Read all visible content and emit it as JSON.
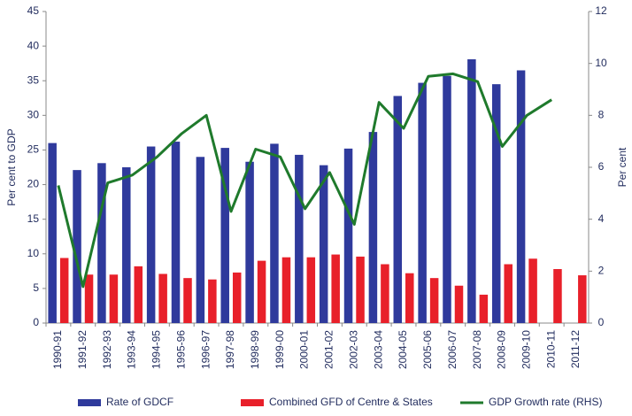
{
  "chart_data": {
    "type": "bar-line",
    "y_label": "Per cent to GDP",
    "y2_label": "Per cent",
    "categories": [
      "1990-91",
      "1991-92",
      "1992-93",
      "1993-94",
      "1994-95",
      "1995-96",
      "1996-97",
      "1997-98",
      "1998-99",
      "1999-00",
      "2000-01",
      "2001-02",
      "2002-03",
      "2003-04",
      "2004-05",
      "2005-06",
      "2006-07",
      "2007-08",
      "2008-09",
      "2009-10",
      "2010-11",
      "2011-12"
    ],
    "series": [
      {
        "name": "Rate of GDCF",
        "type": "bar",
        "color": "#2f3a9c",
        "values": [
          26.0,
          22.1,
          23.1,
          22.5,
          25.5,
          26.2,
          24.0,
          25.3,
          23.3,
          25.9,
          24.3,
          22.8,
          25.2,
          27.6,
          32.8,
          34.7,
          35.7,
          38.1,
          34.5,
          36.5,
          null,
          null
        ]
      },
      {
        "name": "Combined GFD of Centre & States",
        "type": "bar",
        "color": "#e8202a",
        "values": [
          9.4,
          7.0,
          7.0,
          8.2,
          7.1,
          6.5,
          6.3,
          7.3,
          9.0,
          9.5,
          9.5,
          9.9,
          9.6,
          8.5,
          7.2,
          6.5,
          5.4,
          4.1,
          8.5,
          9.3,
          7.8,
          6.9
        ]
      },
      {
        "name": "GDP Growth rate (RHS)",
        "type": "line",
        "axis": "y2",
        "color": "#1f7a2c",
        "values": [
          5.3,
          1.4,
          5.4,
          5.7,
          6.4,
          7.3,
          8.0,
          4.3,
          6.7,
          6.4,
          4.4,
          5.8,
          3.8,
          8.5,
          7.5,
          9.5,
          9.6,
          9.3,
          6.8,
          8.0,
          8.6,
          null
        ]
      }
    ],
    "ylim": [
      0,
      45
    ],
    "yticks": [
      0,
      5,
      10,
      15,
      20,
      25,
      30,
      35,
      40,
      45
    ],
    "y2lim": [
      0,
      12
    ],
    "y2ticks": [
      0,
      2,
      4,
      6,
      8,
      10,
      12
    ],
    "grid": false,
    "legend": "bottom"
  }
}
